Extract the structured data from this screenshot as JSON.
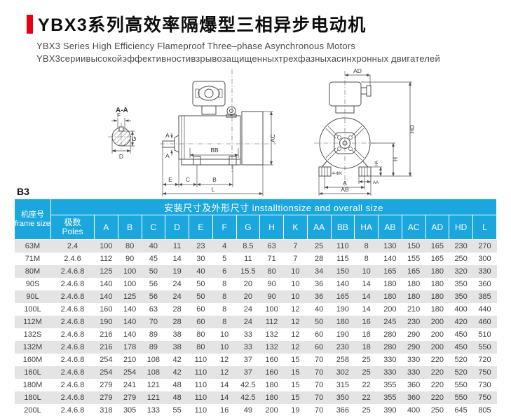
{
  "header": {
    "title": "YBX3系列高效率隔爆型三相异步电动机",
    "subtitle_en": "YBX3 Series High Efficiency Flameproof Three–phase Asynchronous Motors",
    "subtitle_ru": "YBX3сериивысокойэффективностивзрывозащищенныхтрехфазныхасинхронных двигателей",
    "accent_color": "#e60014"
  },
  "drawings": {
    "mount_type": "B3",
    "labels": {
      "sec": "A-A",
      "f": "F",
      "g": "G",
      "d": "D",
      "a1": "A",
      "bb": "BB",
      "ac": "AC",
      "e": "E",
      "c": "C",
      "b": "B",
      "l": "L",
      "ad": "AD",
      "hd": "HD",
      "ha": "HA",
      "h": "H",
      "aa": "AA",
      "a": "A",
      "ab": "AB",
      "holes": "4-ΦK"
    }
  },
  "table": {
    "header_bg": "#1ba6dd",
    "span_header": "安装尺寸及外形尺寸 installtionsize and overall size",
    "frame_header_cn": "机座号",
    "frame_header_en": "frame size",
    "poles_header_cn": "极数",
    "poles_header_en": "Poles",
    "columns": [
      "A",
      "B",
      "C",
      "D",
      "E",
      "F",
      "G",
      "H",
      "K",
      "AA",
      "BB",
      "HA",
      "AB",
      "AC",
      "AD",
      "HD",
      "L"
    ],
    "rows": [
      {
        "frame": "63M",
        "poles": "2.4",
        "values": [
          100,
          80,
          40,
          11,
          23,
          4,
          8.5,
          63,
          7,
          25,
          110,
          8,
          130,
          150,
          165,
          230,
          270
        ]
      },
      {
        "frame": "71M",
        "poles": "2.4.6",
        "values": [
          112,
          90,
          45,
          14,
          30,
          5,
          11,
          71,
          7,
          28,
          115,
          8,
          140,
          155,
          165,
          250,
          300
        ]
      },
      {
        "frame": "80M",
        "poles": "2.4.6.8",
        "values": [
          125,
          100,
          50,
          19,
          40,
          6,
          15.5,
          80,
          10,
          34,
          150,
          10,
          165,
          165,
          180,
          320,
          330
        ]
      },
      {
        "frame": "90S",
        "poles": "2.4.6.8",
        "values": [
          140,
          100,
          56,
          24,
          50,
          8,
          20,
          90,
          10,
          36,
          140,
          14,
          180,
          180,
          180,
          350,
          360
        ]
      },
      {
        "frame": "90L",
        "poles": "2.4.6.8",
        "values": [
          140,
          125,
          56,
          24,
          50,
          8,
          20,
          90,
          10,
          36,
          165,
          14,
          180,
          180,
          180,
          350,
          385
        ]
      },
      {
        "frame": "100L",
        "poles": "2.4.6.8",
        "values": [
          160,
          140,
          63,
          28,
          60,
          8,
          24,
          100,
          12,
          40,
          190,
          14,
          200,
          210,
          180,
          400,
          440
        ]
      },
      {
        "frame": "112M",
        "poles": "2.4.6.8",
        "values": [
          190,
          140,
          70,
          28,
          60,
          8,
          24,
          112,
          12,
          50,
          180,
          16,
          245,
          230,
          200,
          420,
          460
        ]
      },
      {
        "frame": "132S",
        "poles": "2.4.6.8",
        "values": [
          216,
          140,
          89,
          38,
          80,
          10,
          33,
          132,
          12,
          60,
          190,
          18,
          280,
          290,
          200,
          450,
          510
        ]
      },
      {
        "frame": "132M",
        "poles": "2.4.6.8",
        "values": [
          216,
          178,
          89,
          38,
          80,
          10,
          33,
          132,
          12,
          60,
          230,
          18,
          280,
          290,
          200,
          450,
          550
        ]
      },
      {
        "frame": "160M",
        "poles": "2.4.6.8",
        "values": [
          254,
          210,
          108,
          42,
          110,
          12,
          37,
          160,
          15,
          70,
          258,
          25,
          330,
          330,
          220,
          520,
          720
        ]
      },
      {
        "frame": "160L",
        "poles": "2.4.6.8",
        "values": [
          254,
          254,
          108,
          42,
          110,
          12,
          37,
          160,
          15,
          70,
          302,
          25,
          330,
          330,
          220,
          520,
          750
        ]
      },
      {
        "frame": "180M",
        "poles": "2.4.6.8",
        "values": [
          279,
          241,
          121,
          48,
          110,
          14,
          42.5,
          180,
          15,
          70,
          315,
          22,
          355,
          360,
          220,
          550,
          730
        ]
      },
      {
        "frame": "180L",
        "poles": "2.4.6.8",
        "values": [
          279,
          279,
          121,
          48,
          110,
          14,
          42.5,
          180,
          15,
          70,
          350,
          22,
          355,
          360,
          220,
          550,
          750
        ]
      },
      {
        "frame": "200L",
        "poles": "2.4.6.8",
        "values": [
          318,
          305,
          133,
          55,
          110,
          16,
          49,
          200,
          19,
          70,
          366,
          25,
          390,
          400,
          250,
          645,
          805
        ]
      }
    ]
  }
}
